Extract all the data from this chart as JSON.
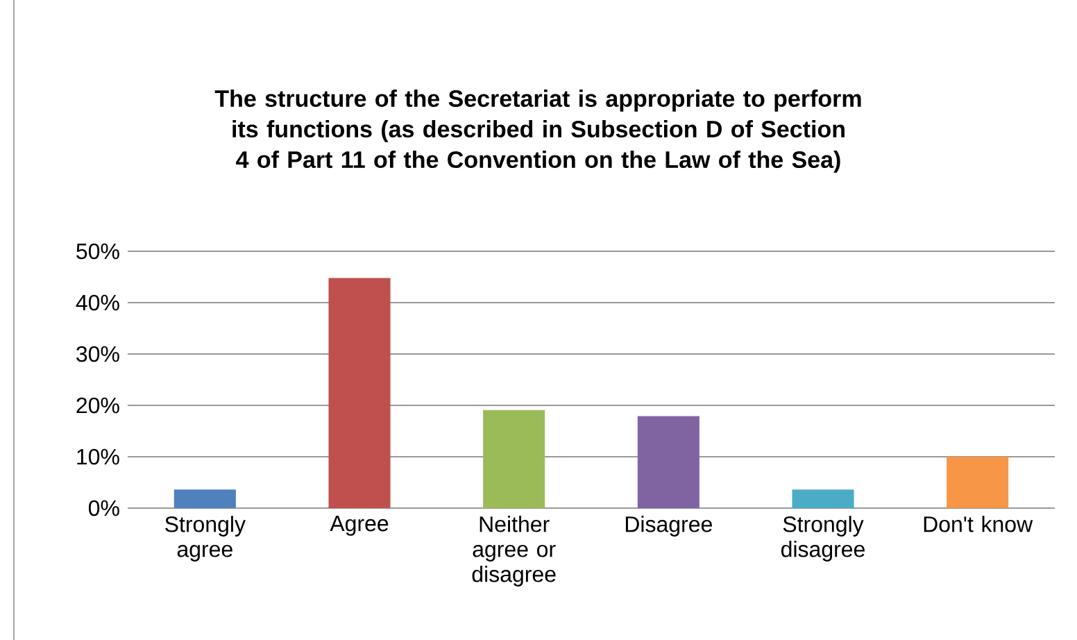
{
  "chart_data": {
    "type": "bar",
    "title": "The structure of the Secretariat is appropriate to perform its functions (as described in Subsection D of Section 4 of Part 11 of the Convention on the Law of the Sea)",
    "categories": [
      "Strongly agree",
      "Agree",
      "Neither agree or disagree",
      "Disagree",
      "Strongly disagree",
      "Don't know"
    ],
    "values": [
      3.6,
      44.8,
      19.1,
      17.9,
      3.6,
      10.0
    ],
    "colors": [
      "#4f81bd",
      "#c0504d",
      "#9bbb59",
      "#8064a2",
      "#4bacc6",
      "#f79646"
    ],
    "ylim": [
      0,
      50
    ],
    "yticks": [
      {
        "value": 0,
        "label": "0%"
      },
      {
        "value": 10,
        "label": "10%"
      },
      {
        "value": 20,
        "label": "20%"
      },
      {
        "value": 30,
        "label": "30%"
      },
      {
        "value": 40,
        "label": "40%"
      },
      {
        "value": 50,
        "label": "50%"
      }
    ],
    "grid": "y"
  }
}
